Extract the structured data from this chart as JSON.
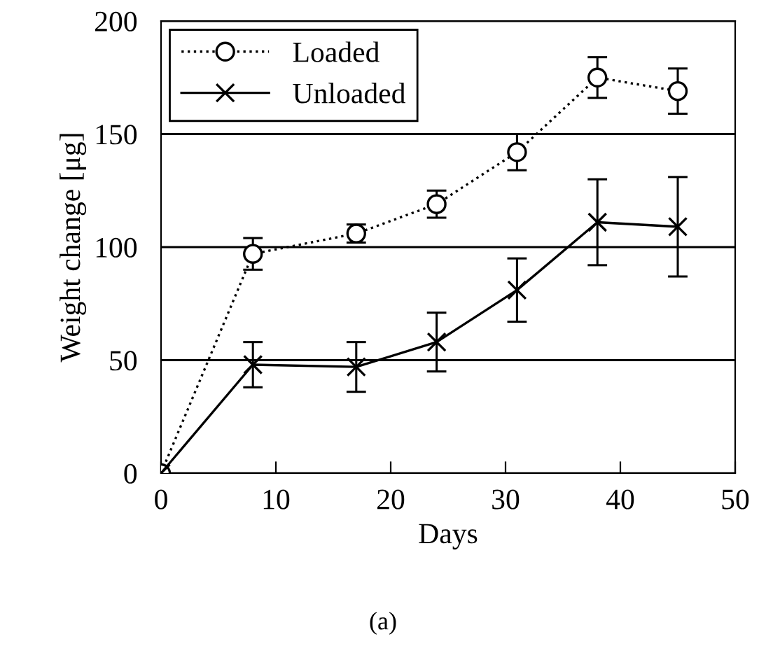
{
  "chart_data": {
    "type": "line",
    "xlabel": "Days",
    "ylabel": "Weight change [μg]",
    "x": [
      0,
      8,
      17,
      24,
      31,
      38,
      45
    ],
    "series": [
      {
        "name": "Loaded",
        "color": "#000000",
        "marker": "circle",
        "line_style": "dotted",
        "values": [
          0,
          97,
          106,
          119,
          142,
          175,
          169
        ],
        "errors": [
          null,
          7,
          4,
          6,
          8,
          9,
          10
        ]
      },
      {
        "name": "Unloaded",
        "color": "#000000",
        "marker": "cross",
        "line_style": "solid",
        "values": [
          0,
          48,
          47,
          58,
          81,
          111,
          109
        ],
        "errors": [
          null,
          10,
          11,
          13,
          14,
          19,
          22
        ]
      }
    ],
    "xlim": [
      0,
      50
    ],
    "ylim": [
      0,
      200
    ],
    "xticks": [
      0,
      10,
      20,
      30,
      40,
      50
    ],
    "yticks": [
      0,
      50,
      100,
      150,
      200
    ],
    "grid": "y",
    "legend": "top left",
    "annotations": [
      "(a)"
    ]
  }
}
